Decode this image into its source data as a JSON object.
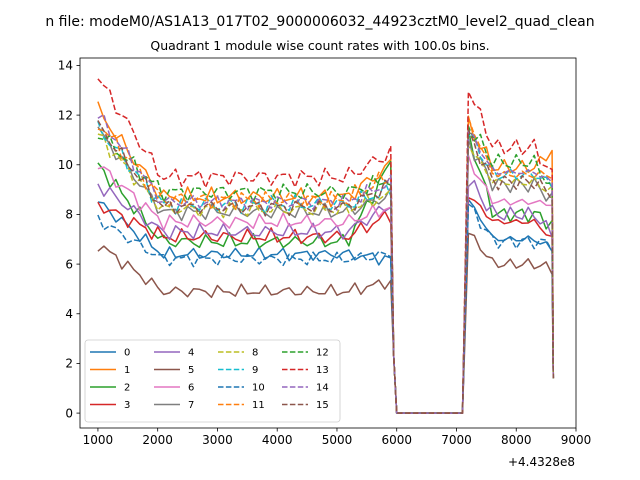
{
  "figure": {
    "suptitle": "n file: modeM0/AS1A13_017T02_9000006032_44923cztM0_level2_quad_clean",
    "offset_label": "+4.4328e8"
  },
  "chart_data": {
    "type": "line",
    "title": "Quadrant 1 module wise count rates with 100.0s bins.",
    "xlabel": "",
    "ylabel": "",
    "x_offset": 443280000,
    "xlim": [
      700,
      9000
    ],
    "ylim": [
      -0.6,
      14.3
    ],
    "x_ticks": [
      1000,
      2000,
      3000,
      4000,
      5000,
      6000,
      7000,
      8000,
      9000
    ],
    "y_ticks": [
      0,
      2,
      4,
      6,
      8,
      10,
      12,
      14
    ],
    "grid": false,
    "legend": {
      "placement": "lower-left",
      "columns": 4
    },
    "gap": {
      "start": 6000,
      "end": 7100
    },
    "x": {
      "segment1": {
        "start": 1000,
        "end": 5900,
        "step": 100
      },
      "drop": [
        5950,
        6000
      ],
      "segment2": {
        "start": 7200,
        "end": 8600,
        "step": 100
      },
      "last": 8620
    },
    "series": [
      {
        "name": "0",
        "color": "#1f77b4",
        "dash": "solid",
        "level1": 6.4,
        "start1": 8.5,
        "end1": 6.2,
        "level2": 7.0,
        "start2": 8.6,
        "end2": 6.6,
        "amp": 0.25
      },
      {
        "name": "1",
        "color": "#ff7f0e",
        "dash": "solid",
        "level1": 8.7,
        "start1": 12.2,
        "end1": 10.0,
        "level2": 9.9,
        "start2": 11.6,
        "end2": 10.6,
        "amp": 0.35
      },
      {
        "name": "2",
        "color": "#2ca02c",
        "dash": "solid",
        "level1": 6.9,
        "start1": 10.0,
        "end1": 10.1,
        "level2": 8.0,
        "start2": 11.2,
        "end2": 7.6,
        "amp": 0.3
      },
      {
        "name": "3",
        "color": "#d62728",
        "dash": "solid",
        "level1": 7.1,
        "start1": 8.4,
        "end1": 8.0,
        "level2": 7.7,
        "start2": 8.8,
        "end2": 7.0,
        "amp": 0.3
      },
      {
        "name": "4",
        "color": "#9467bd",
        "dash": "solid",
        "level1": 7.3,
        "start1": 9.2,
        "end1": 8.4,
        "level2": 8.0,
        "start2": 9.4,
        "end2": 7.2,
        "amp": 0.3
      },
      {
        "name": "5",
        "color": "#8c564b",
        "dash": "solid",
        "level1": 4.9,
        "start1": 6.8,
        "end1": 5.3,
        "level2": 6.0,
        "start2": 7.3,
        "end2": 5.8,
        "amp": 0.25
      },
      {
        "name": "6",
        "color": "#e377c2",
        "dash": "solid",
        "level1": 7.7,
        "start1": 10.0,
        "end1": 8.3,
        "level2": 8.5,
        "start2": 10.2,
        "end2": 8.4,
        "amp": 0.3
      },
      {
        "name": "7",
        "color": "#7f7f7f",
        "dash": "solid",
        "level1": 8.1,
        "start1": 11.4,
        "end1": 8.8,
        "level2": 9.2,
        "start2": 10.9,
        "end2": 8.6,
        "amp": 0.3
      },
      {
        "name": "8",
        "color": "#bcbd22",
        "dash": "dashed",
        "level1": 8.2,
        "start1": 11.2,
        "end1": 8.8,
        "level2": 9.3,
        "start2": 10.8,
        "end2": 8.9,
        "amp": 0.3
      },
      {
        "name": "9",
        "color": "#17becf",
        "dash": "dashed",
        "level1": 8.4,
        "start1": 11.5,
        "end1": 9.0,
        "level2": 9.6,
        "start2": 11.3,
        "end2": 9.2,
        "amp": 0.35
      },
      {
        "name": "10",
        "color": "#1f77b4",
        "dash": "dashed",
        "level1": 6.2,
        "start1": 7.8,
        "end1": 6.4,
        "level2": 6.9,
        "start2": 8.4,
        "end2": 6.8,
        "amp": 0.25
      },
      {
        "name": "11",
        "color": "#ff7f0e",
        "dash": "dashed",
        "level1": 8.6,
        "start1": 11.7,
        "end1": 9.6,
        "level2": 9.6,
        "start2": 11.8,
        "end2": 9.6,
        "amp": 0.35
      },
      {
        "name": "12",
        "color": "#2ca02c",
        "dash": "dashed",
        "level1": 8.9,
        "start1": 11.3,
        "end1": 9.4,
        "level2": 10.1,
        "start2": 11.6,
        "end2": 9.0,
        "amp": 0.35
      },
      {
        "name": "13",
        "color": "#d62728",
        "dash": "dashed",
        "level1": 9.5,
        "start1": 13.5,
        "end1": 10.5,
        "level2": 10.7,
        "start2": 13.1,
        "end2": 9.5,
        "amp": 0.35
      },
      {
        "name": "14",
        "color": "#9467bd",
        "dash": "dashed",
        "level1": 8.5,
        "start1": 12.0,
        "end1": 9.3,
        "level2": 9.7,
        "start2": 11.4,
        "end2": 9.3,
        "amp": 0.3
      },
      {
        "name": "15",
        "color": "#8c564b",
        "dash": "dashed",
        "level1": 8.3,
        "start1": 11.6,
        "end1": 9.2,
        "level2": 9.3,
        "start2": 11.2,
        "end2": 8.8,
        "amp": 0.3
      }
    ]
  }
}
